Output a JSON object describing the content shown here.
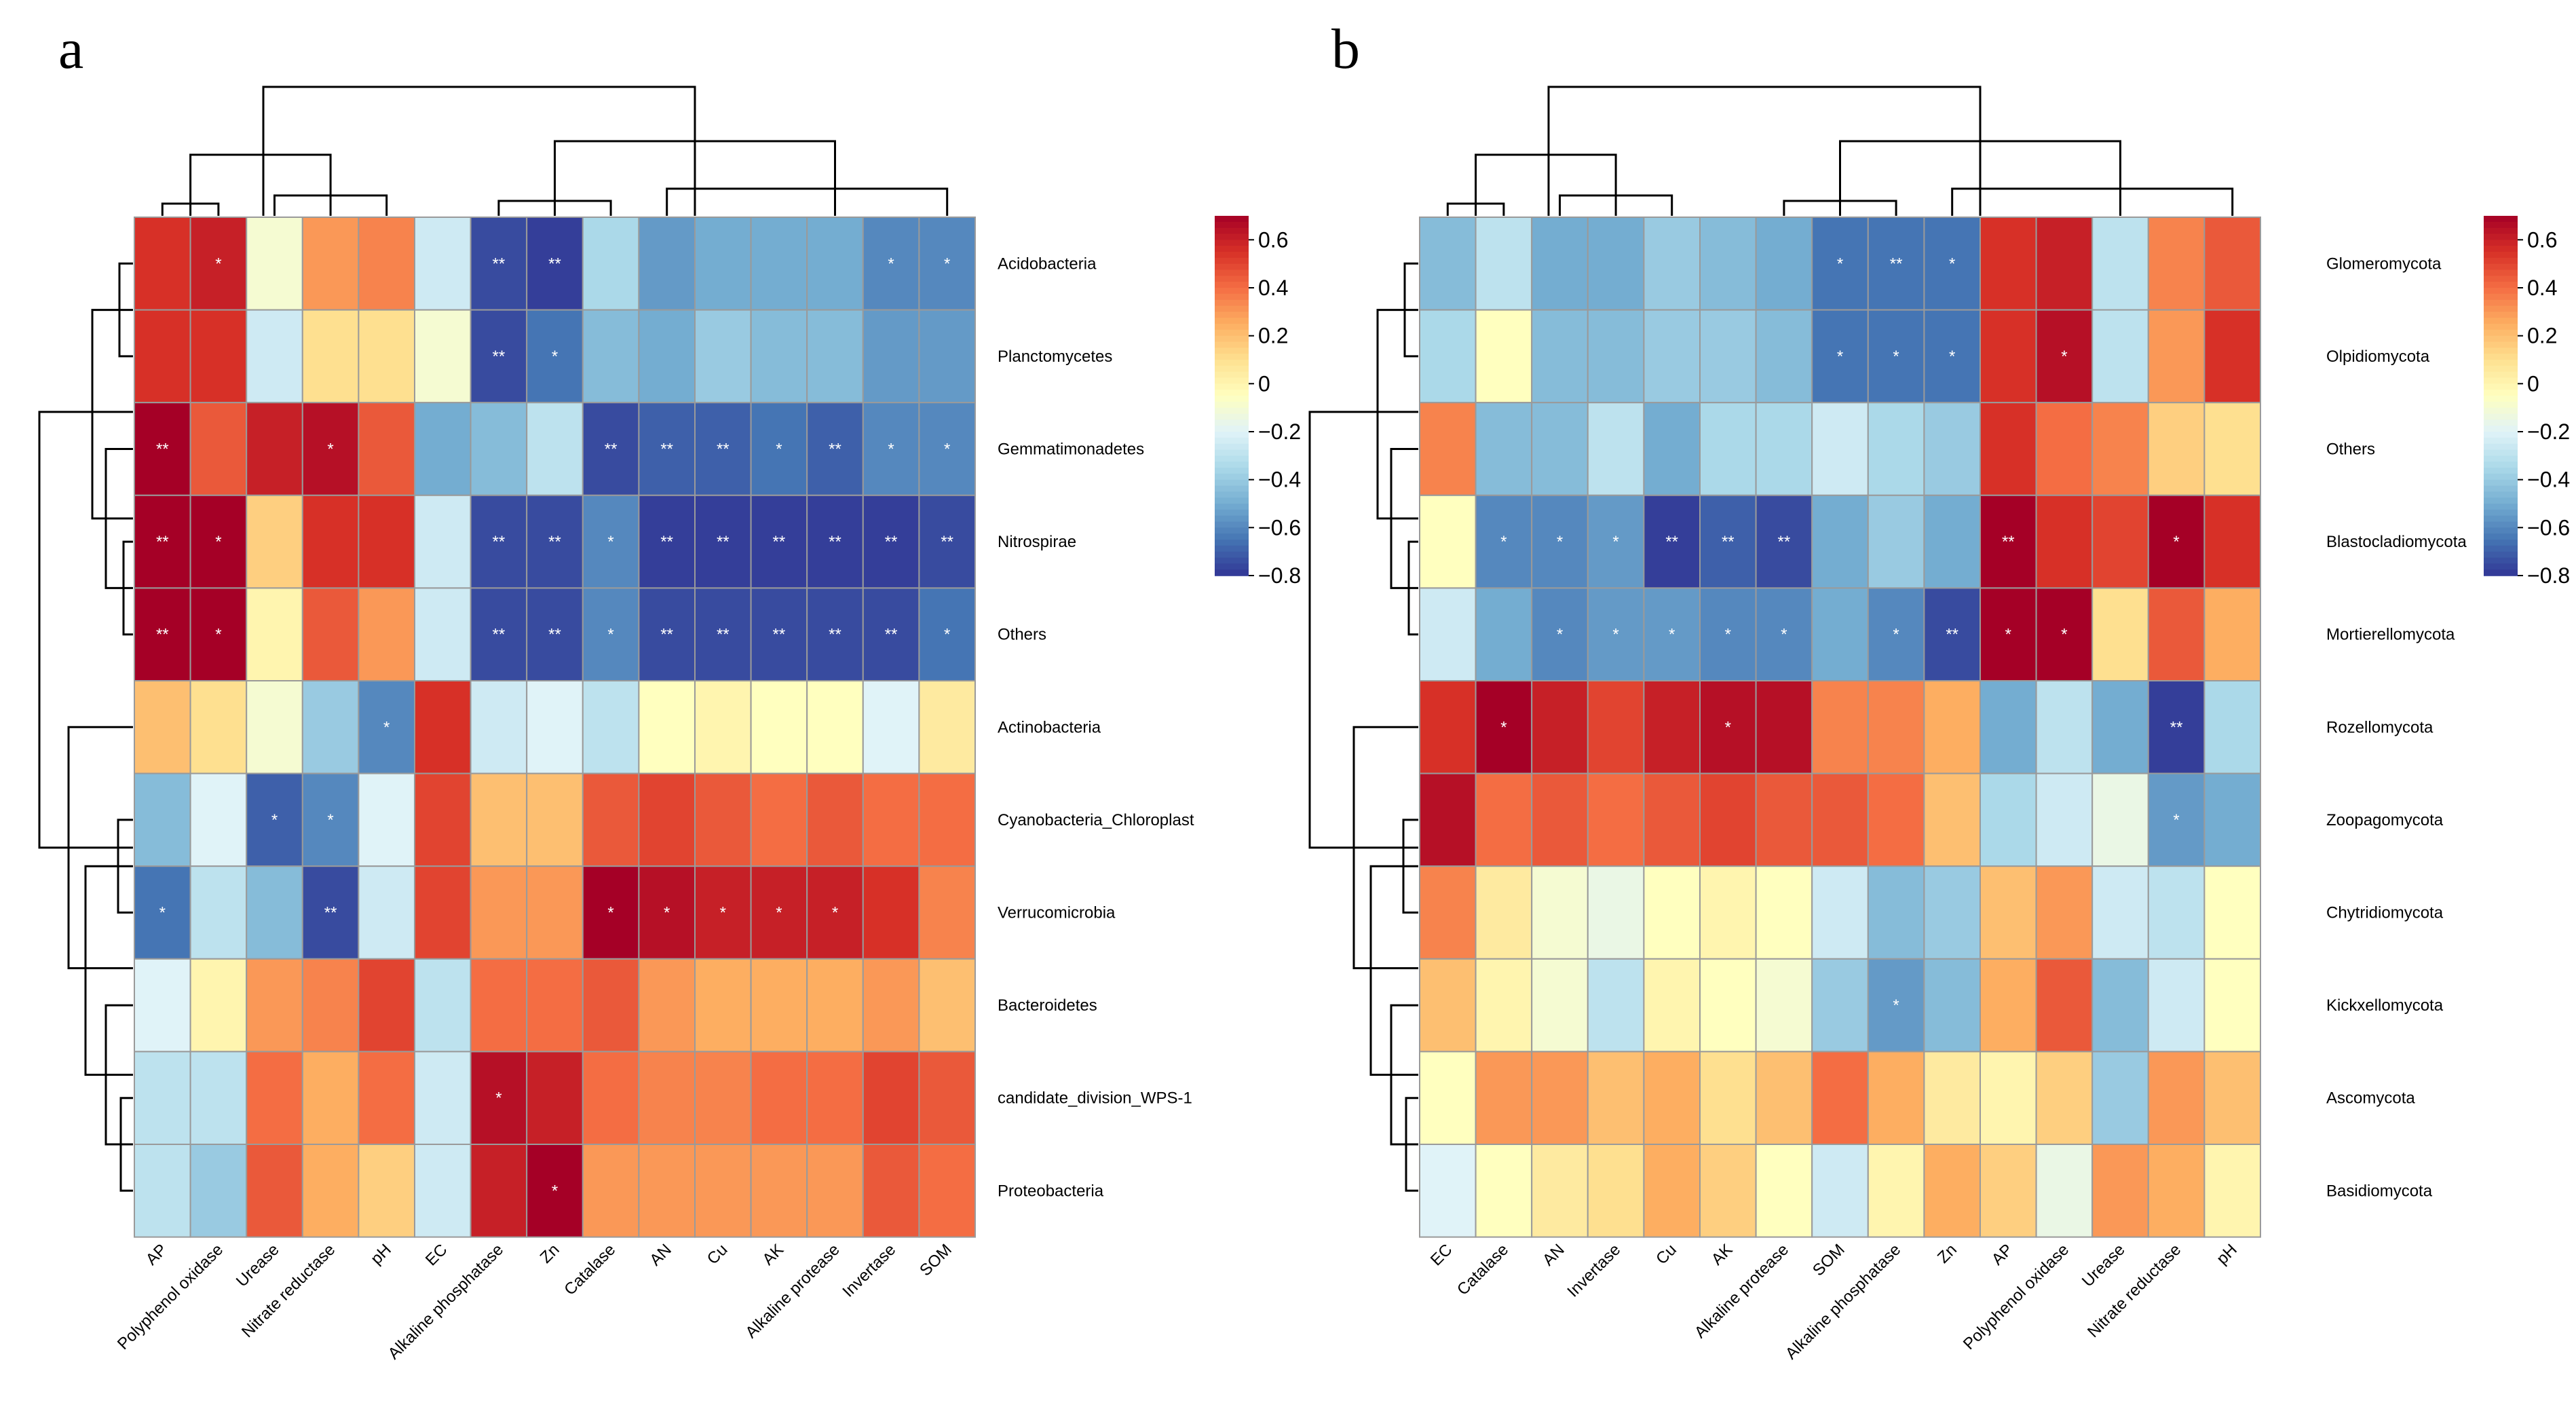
{
  "colors": {
    "palette": [
      "#313695",
      "#4575b4",
      "#74add1",
      "#abd9e9",
      "#e0f3f8",
      "#ffffbf",
      "#fee090",
      "#fdae61",
      "#f46d43",
      "#d73027",
      "#a50026"
    ],
    "text": "#000000",
    "star": "#ffffff",
    "grid": "#9a9a9a"
  },
  "chart_data": [
    {
      "type": "heatmap",
      "panel_label": "a",
      "title": "",
      "rows": [
        "Acidobacteria",
        "Planctomycetes",
        "Gemmatimonadetes",
        "Nitrospirae",
        "Others",
        "Actinobacteria",
        "Cyanobacteria_Chloroplast",
        "Verrucomicrobia",
        "Bacteroidetes",
        "candidate_division_WPS-1",
        "Proteobacteria"
      ],
      "columns": [
        "AP",
        "Polyphenol oxidase",
        "Urease",
        "Nitrate reductase",
        "pH",
        "EC",
        "Alkaline phosphatase",
        "Zn",
        "Catalase",
        "AN",
        "Cu",
        "AK",
        "Alkaline protease",
        "Invertase",
        "SOM"
      ],
      "values": [
        [
          0.55,
          0.6,
          -0.1,
          0.3,
          0.35,
          -0.25,
          -0.75,
          -0.78,
          -0.35,
          -0.55,
          -0.5,
          -0.5,
          -0.5,
          -0.6,
          -0.6
        ],
        [
          0.55,
          0.55,
          -0.25,
          0.1,
          0.1,
          -0.1,
          -0.75,
          -0.65,
          -0.45,
          -0.5,
          -0.4,
          -0.45,
          -0.45,
          -0.55,
          -0.55
        ],
        [
          0.7,
          0.45,
          0.6,
          0.65,
          0.45,
          -0.5,
          -0.45,
          -0.3,
          -0.75,
          -0.7,
          -0.7,
          -0.65,
          -0.7,
          -0.6,
          -0.6
        ],
        [
          0.72,
          0.7,
          0.15,
          0.55,
          0.55,
          -0.25,
          -0.75,
          -0.75,
          -0.6,
          -0.78,
          -0.78,
          -0.78,
          -0.78,
          -0.78,
          -0.75
        ],
        [
          0.72,
          0.7,
          0.0,
          0.45,
          0.3,
          -0.25,
          -0.75,
          -0.75,
          -0.6,
          -0.75,
          -0.75,
          -0.75,
          -0.75,
          -0.75,
          -0.65
        ],
        [
          0.2,
          0.1,
          -0.1,
          -0.4,
          -0.6,
          0.55,
          -0.25,
          -0.2,
          -0.3,
          -0.05,
          0.0,
          -0.05,
          -0.05,
          -0.2,
          0.05
        ],
        [
          -0.45,
          -0.2,
          -0.7,
          -0.6,
          -0.2,
          0.5,
          0.2,
          0.2,
          0.45,
          0.5,
          0.45,
          0.4,
          0.45,
          0.4,
          0.4
        ],
        [
          -0.65,
          -0.3,
          -0.45,
          -0.75,
          -0.25,
          0.5,
          0.3,
          0.3,
          0.72,
          0.65,
          0.6,
          0.6,
          0.6,
          0.55,
          0.35
        ],
        [
          -0.2,
          0.0,
          0.3,
          0.35,
          0.5,
          -0.3,
          0.4,
          0.4,
          0.45,
          0.3,
          0.25,
          0.25,
          0.25,
          0.3,
          0.2
        ],
        [
          -0.3,
          -0.3,
          0.4,
          0.25,
          0.4,
          -0.25,
          0.65,
          0.6,
          0.4,
          0.35,
          0.35,
          0.4,
          0.4,
          0.5,
          0.45
        ],
        [
          -0.3,
          -0.4,
          0.45,
          0.25,
          0.15,
          -0.25,
          0.6,
          0.7,
          0.3,
          0.3,
          0.3,
          0.3,
          0.3,
          0.45,
          0.4
        ]
      ],
      "significance": [
        [
          "",
          "*",
          "",
          "",
          "",
          "",
          "**",
          "**",
          "",
          "",
          "",
          "",
          "",
          "*",
          "*"
        ],
        [
          "",
          "",
          "",
          "",
          "",
          "",
          "**",
          "*",
          "",
          "",
          "",
          "",
          "",
          "",
          ""
        ],
        [
          "**",
          "",
          "",
          "*",
          "",
          "",
          "",
          "",
          "**",
          "**",
          "**",
          "*",
          "**",
          "*",
          "*"
        ],
        [
          "**",
          "*",
          "",
          "",
          "",
          "",
          "**",
          "**",
          "*",
          "**",
          "**",
          "**",
          "**",
          "**",
          "**"
        ],
        [
          "**",
          "*",
          "",
          "",
          "",
          "",
          "**",
          "**",
          "*",
          "**",
          "**",
          "**",
          "**",
          "**",
          "*"
        ],
        [
          "",
          "",
          "",
          "",
          "*",
          "",
          "",
          "",
          "",
          "",
          "",
          "",
          "",
          "",
          ""
        ],
        [
          "",
          "",
          "*",
          "*",
          "",
          "",
          "",
          "",
          "",
          "",
          "",
          "",
          "",
          "",
          ""
        ],
        [
          "*",
          "",
          "",
          "**",
          "",
          "",
          "",
          "",
          "*",
          "*",
          "*",
          "*",
          "*",
          "",
          ""
        ],
        [
          "",
          "",
          "",
          "",
          "",
          "",
          "",
          "",
          "",
          "",
          "",
          "",
          "",
          "",
          ""
        ],
        [
          "",
          "",
          "",
          "",
          "",
          "",
          "*",
          "",
          "",
          "",
          "",
          "",
          "",
          "",
          ""
        ],
        [
          "",
          "",
          "",
          "",
          "",
          "",
          "",
          "*",
          "",
          "",
          "",
          "",
          "",
          "",
          ""
        ]
      ],
      "legend": {
        "ticks": [
          0.6,
          0.4,
          0.2,
          0,
          -0.2,
          -0.4,
          -0.6,
          -0.8
        ],
        "tick_labels": [
          "0.6",
          "0.4",
          "0.2",
          "0",
          "−0.2",
          "−0.4",
          "−0.6",
          "−0.8"
        ],
        "range": [
          -0.8,
          0.7
        ]
      }
    },
    {
      "type": "heatmap",
      "panel_label": "b",
      "title": "",
      "rows": [
        "Glomeromycota",
        "Olpidiomycota",
        "Others",
        "Blastocladiomycota",
        "Mortierellomycota",
        "Rozellomycota",
        "Zoopagomycota",
        "Chytridiomycota",
        "Kickxellomycota",
        "Ascomycota",
        "Basidiomycota"
      ],
      "columns": [
        "EC",
        "Catalase",
        "AN",
        "Invertase",
        "Cu",
        "AK",
        "Alkaline protease",
        "SOM",
        "Alkaline phosphatase",
        "Zn",
        "AP",
        "Polyphenol oxidase",
        "Urease",
        "Nitrate reductase",
        "pH"
      ],
      "values": [
        [
          -0.45,
          -0.3,
          -0.5,
          -0.5,
          -0.4,
          -0.45,
          -0.5,
          -0.65,
          -0.65,
          -0.65,
          0.55,
          0.6,
          -0.3,
          0.35,
          0.45
        ],
        [
          -0.35,
          -0.05,
          -0.45,
          -0.45,
          -0.4,
          -0.4,
          -0.45,
          -0.65,
          -0.65,
          -0.65,
          0.55,
          0.65,
          -0.3,
          0.3,
          0.55
        ],
        [
          0.35,
          -0.45,
          -0.45,
          -0.3,
          -0.5,
          -0.35,
          -0.35,
          -0.25,
          -0.35,
          -0.4,
          0.55,
          0.4,
          0.35,
          0.15,
          0.1
        ],
        [
          -0.05,
          -0.6,
          -0.6,
          -0.55,
          -0.78,
          -0.7,
          -0.75,
          -0.5,
          -0.4,
          -0.5,
          0.72,
          0.55,
          0.5,
          0.72,
          0.55
        ],
        [
          -0.25,
          -0.5,
          -0.6,
          -0.55,
          -0.55,
          -0.6,
          -0.6,
          -0.5,
          -0.6,
          -0.75,
          0.72,
          0.72,
          0.1,
          0.45,
          0.25
        ],
        [
          0.55,
          0.7,
          0.6,
          0.5,
          0.6,
          0.65,
          0.65,
          0.35,
          0.35,
          0.25,
          -0.5,
          -0.3,
          -0.5,
          -0.78,
          -0.35
        ],
        [
          0.65,
          0.4,
          0.45,
          0.4,
          0.45,
          0.5,
          0.45,
          0.45,
          0.4,
          0.2,
          -0.35,
          -0.25,
          -0.15,
          -0.55,
          -0.5
        ],
        [
          0.35,
          0.05,
          -0.1,
          -0.15,
          -0.05,
          0.0,
          -0.05,
          -0.25,
          -0.45,
          -0.4,
          0.2,
          0.3,
          -0.25,
          -0.3,
          -0.05
        ],
        [
          0.2,
          0.0,
          -0.1,
          -0.3,
          0.0,
          -0.05,
          -0.1,
          -0.4,
          -0.55,
          -0.45,
          0.25,
          0.45,
          -0.45,
          -0.25,
          -0.05
        ],
        [
          -0.05,
          0.3,
          0.3,
          0.2,
          0.25,
          0.1,
          0.2,
          0.4,
          0.25,
          0.05,
          0.0,
          0.15,
          -0.4,
          0.3,
          0.2
        ],
        [
          -0.2,
          -0.05,
          0.05,
          0.1,
          0.25,
          0.15,
          -0.05,
          -0.25,
          0.0,
          0.25,
          0.15,
          -0.15,
          0.3,
          0.25,
          0.0
        ]
      ],
      "significance": [
        [
          "",
          "",
          "",
          "",
          "",
          "",
          "",
          "*",
          "**",
          "*",
          "",
          "",
          "",
          "",
          ""
        ],
        [
          "",
          "",
          "",
          "",
          "",
          "",
          "",
          "*",
          "*",
          "*",
          "",
          "*",
          "",
          "",
          ""
        ],
        [
          "",
          "",
          "",
          "",
          "",
          "",
          "",
          "",
          "",
          "",
          "",
          "",
          "",
          "",
          ""
        ],
        [
          "",
          "*",
          "*",
          "*",
          "**",
          "**",
          "**",
          "",
          "",
          "",
          "**",
          "",
          "",
          "*",
          ""
        ],
        [
          "",
          "",
          "*",
          "*",
          "*",
          "*",
          "*",
          "",
          "*",
          "**",
          "*",
          "*",
          "",
          "",
          ""
        ],
        [
          "",
          "*",
          "",
          "",
          "",
          "*",
          "",
          "",
          "",
          "",
          "",
          "",
          "",
          "**",
          ""
        ],
        [
          "",
          "",
          "",
          "",
          "",
          "",
          "",
          "",
          "",
          "",
          "",
          "",
          "",
          "*",
          ""
        ],
        [
          "",
          "",
          "",
          "",
          "",
          "",
          "",
          "",
          "",
          "",
          "",
          "",
          "",
          "",
          ""
        ],
        [
          "",
          "",
          "",
          "",
          "",
          "",
          "",
          "",
          "*",
          "",
          "",
          "",
          "",
          "",
          ""
        ],
        [
          "",
          "",
          "",
          "",
          "",
          "",
          "",
          "",
          "",
          "",
          "",
          "",
          "",
          "",
          ""
        ],
        [
          "",
          "",
          "",
          "",
          "",
          "",
          "",
          "",
          "",
          "",
          "",
          "",
          "",
          "",
          ""
        ]
      ],
      "legend": {
        "ticks": [
          0.6,
          0.4,
          0.2,
          0,
          -0.2,
          -0.4,
          -0.6,
          -0.8
        ],
        "tick_labels": [
          "0.6",
          "0.4",
          "0.2",
          "0",
          "−0.2",
          "−0.4",
          "−0.6",
          "−0.8"
        ],
        "range": [
          -0.8,
          0.7
        ]
      }
    }
  ]
}
